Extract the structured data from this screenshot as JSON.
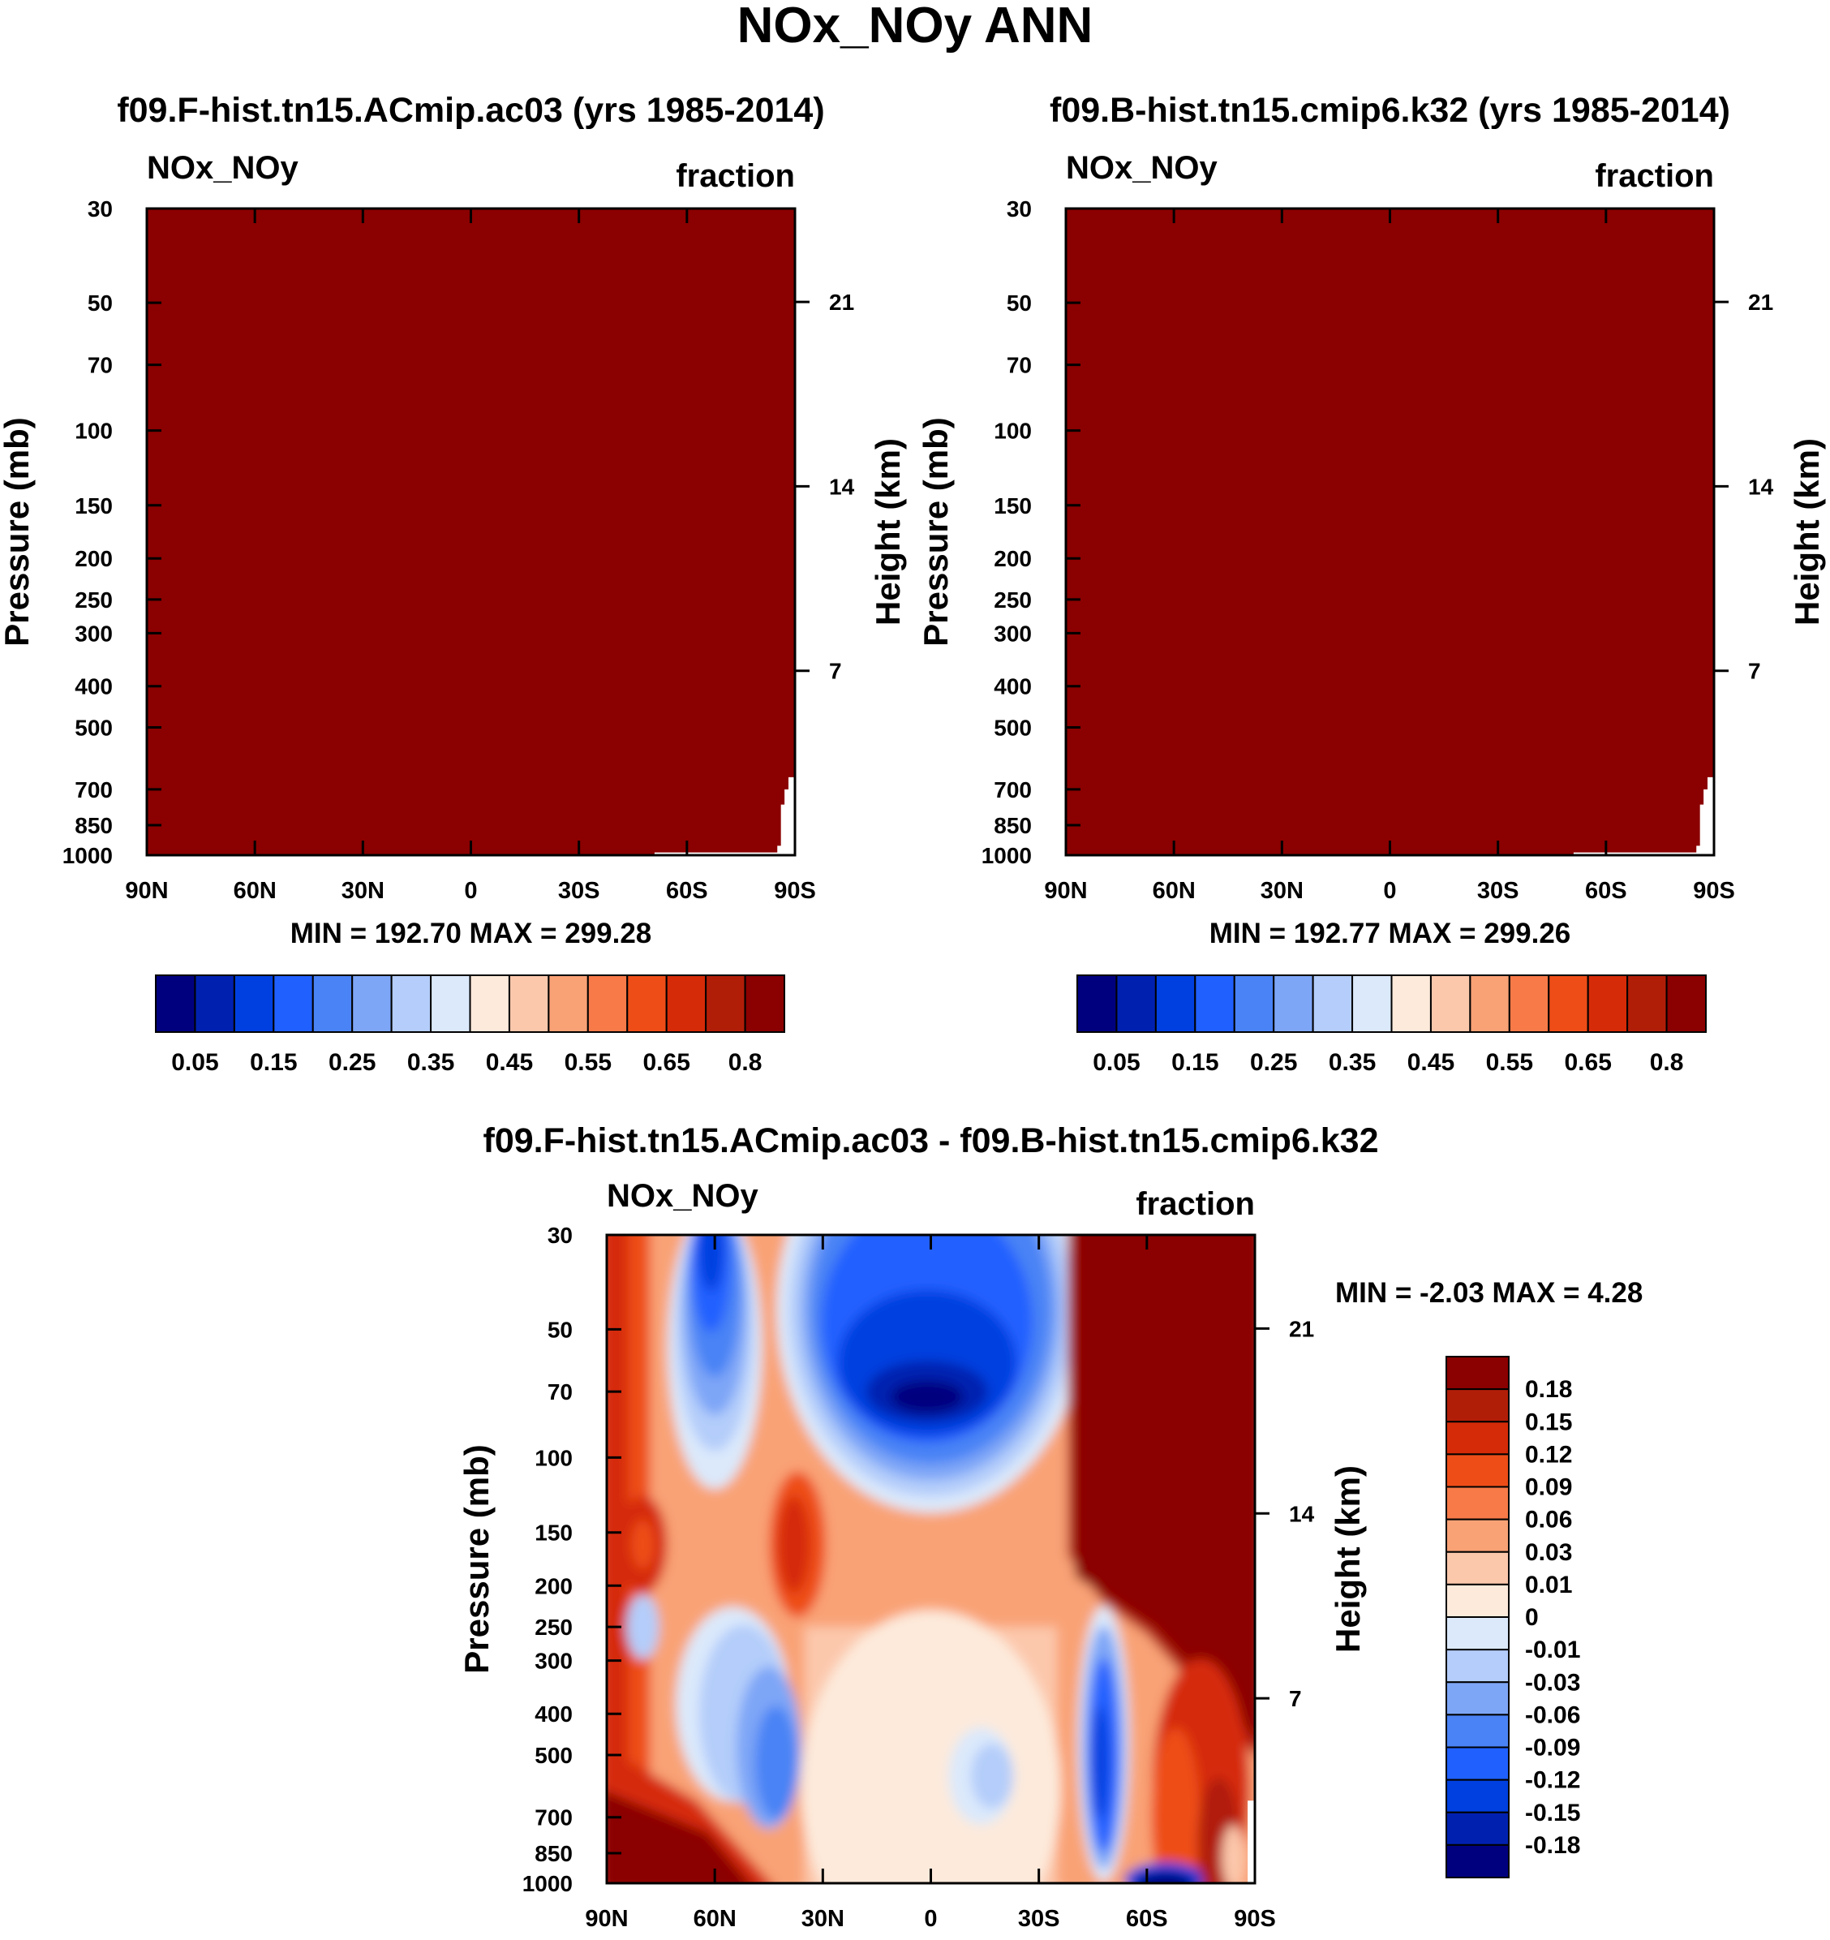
{
  "figure_title": "NOx_NOy ANN",
  "colors": {
    "main_scale": [
      "#00007f",
      "#0021b0",
      "#0040e0",
      "#2060ff",
      "#4a83f5",
      "#7ea6f7",
      "#b4cdfa",
      "#dbe9fb",
      "#fdeadb",
      "#fcc8ac",
      "#f9a276",
      "#f77a48",
      "#ee4d18",
      "#d62b08",
      "#b11e08",
      "#8b0000"
    ],
    "diff_scale": [
      "#00007f",
      "#0021b0",
      "#0040e0",
      "#2060ff",
      "#4a83f5",
      "#7ea6f7",
      "#b4cdfa",
      "#dbe9fb",
      "#fdeadb",
      "#fcc8ac",
      "#f9a276",
      "#f77a48",
      "#ee4d18",
      "#d62b08",
      "#b11e08",
      "#8b0000"
    ]
  },
  "chart_data": [
    {
      "type": "heatmap",
      "id": "panel-a",
      "title": "f09.F-hist.tn15.ACmip.ac03 (yrs 1985-2014)",
      "left_label": "NOx_NOy",
      "right_label": "fraction",
      "ylabel": "Pressure (mb)",
      "ylabel_right": "Height (km)",
      "x_ticks": [
        "90N",
        "60N",
        "30N",
        "0",
        "30S",
        "60S",
        "90S"
      ],
      "x_range": [
        90,
        -90
      ],
      "y_ticks": [
        30,
        50,
        70,
        100,
        150,
        200,
        250,
        300,
        400,
        500,
        700,
        850,
        1000
      ],
      "y_range": [
        30,
        1000
      ],
      "height_ticks": [
        21,
        14,
        7
      ],
      "stats": "MIN = 192.70  MAX = 299.28",
      "field": "saturated above 0.8 everywhere except near-surface Antarctic region",
      "colorbar_labels": [
        "0.05",
        "0.15",
        "0.25",
        "0.35",
        "0.45",
        "0.55",
        "0.65",
        "0.8"
      ]
    },
    {
      "type": "heatmap",
      "id": "panel-b",
      "title": "f09.B-hist.tn15.cmip6.k32 (yrs 1985-2014)",
      "left_label": "NOx_NOy",
      "right_label": "fraction",
      "ylabel": "Pressure (mb)",
      "ylabel_right": "Height (km)",
      "x_ticks": [
        "90N",
        "60N",
        "30N",
        "0",
        "30S",
        "60S",
        "90S"
      ],
      "x_range": [
        90,
        -90
      ],
      "y_ticks": [
        30,
        50,
        70,
        100,
        150,
        200,
        250,
        300,
        400,
        500,
        700,
        850,
        1000
      ],
      "y_range": [
        30,
        1000
      ],
      "height_ticks": [
        21,
        14,
        7
      ],
      "stats": "MIN = 192.77  MAX = 299.26",
      "field": "saturated above 0.8 everywhere except near-surface Antarctic region",
      "colorbar_labels": [
        "0.05",
        "0.15",
        "0.25",
        "0.35",
        "0.45",
        "0.55",
        "0.65",
        "0.8"
      ]
    },
    {
      "type": "heatmap",
      "id": "panel-diff",
      "title": "f09.F-hist.tn15.ACmip.ac03 - f09.B-hist.tn15.cmip6.k32",
      "left_label": "NOx_NOy",
      "right_label": "fraction",
      "ylabel": "Pressure (mb)",
      "ylabel_right": "Height (km)",
      "x_ticks": [
        "90N",
        "60N",
        "30N",
        "0",
        "30S",
        "60S",
        "90S"
      ],
      "x_range": [
        90,
        -90
      ],
      "y_ticks": [
        30,
        50,
        70,
        100,
        150,
        200,
        250,
        300,
        400,
        500,
        700,
        850,
        1000
      ],
      "y_range": [
        30,
        1000
      ],
      "height_ticks": [
        21,
        14,
        7
      ],
      "stats": "MIN =  -2.03  MAX =   4.28",
      "colorbar_labels": [
        "0.18",
        "0.15",
        "0.12",
        "0.09",
        "0.06",
        "0.03",
        "0.01",
        "0",
        "-0.01",
        "-0.03",
        "-0.06",
        "-0.09",
        "-0.12",
        "-0.15",
        "-0.18"
      ]
    }
  ]
}
